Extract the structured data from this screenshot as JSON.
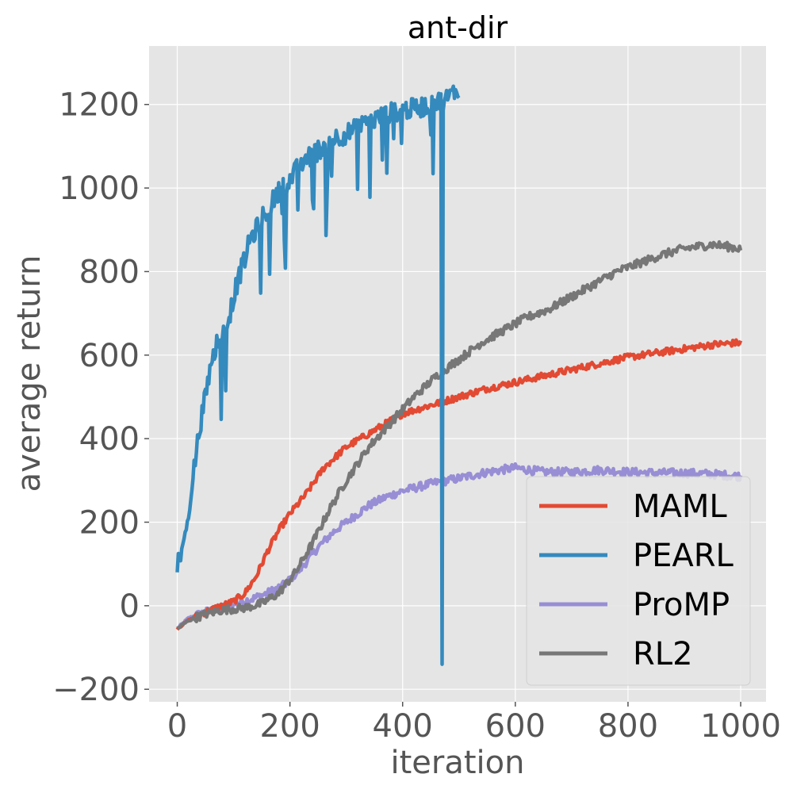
{
  "chart_data": {
    "type": "line",
    "title": "ant-dir",
    "xlabel": "iteration",
    "ylabel": "average return",
    "xlim": [
      -50,
      1045
    ],
    "ylim": [
      -230,
      1340
    ],
    "x_ticks": [
      0,
      200,
      400,
      600,
      800,
      1000
    ],
    "x_tick_labels": [
      "0",
      "200",
      "400",
      "600",
      "800",
      "1000"
    ],
    "y_ticks": [
      -200,
      0,
      200,
      400,
      600,
      800,
      1000,
      1200
    ],
    "y_tick_labels": [
      "−200",
      "0",
      "200",
      "400",
      "600",
      "800",
      "1000",
      "1200"
    ],
    "grid": true,
    "background": "#e5e5e5",
    "legend_position": "lower-right",
    "series": [
      {
        "name": "MAML",
        "color": "#e24a33",
        "noise": 8,
        "points": [
          [
            0,
            -55
          ],
          [
            20,
            -35
          ],
          [
            50,
            -15
          ],
          [
            80,
            0
          ],
          [
            100,
            10
          ],
          [
            120,
            30
          ],
          [
            140,
            70
          ],
          [
            160,
            130
          ],
          [
            180,
            180
          ],
          [
            200,
            220
          ],
          [
            230,
            270
          ],
          [
            260,
            330
          ],
          [
            300,
            380
          ],
          [
            350,
            420
          ],
          [
            400,
            460
          ],
          [
            450,
            480
          ],
          [
            500,
            500
          ],
          [
            550,
            520
          ],
          [
            600,
            535
          ],
          [
            650,
            550
          ],
          [
            700,
            565
          ],
          [
            750,
            580
          ],
          [
            800,
            595
          ],
          [
            850,
            605
          ],
          [
            900,
            615
          ],
          [
            950,
            625
          ],
          [
            1000,
            630
          ]
        ]
      },
      {
        "name": "PEARL",
        "color": "#348abd",
        "noise": 25,
        "points": [
          [
            0,
            140
          ],
          [
            5,
            100
          ],
          [
            10,
            150
          ],
          [
            20,
            210
          ],
          [
            30,
            330
          ],
          [
            40,
            430
          ],
          [
            50,
            500
          ],
          [
            60,
            580
          ],
          [
            70,
            630
          ],
          [
            80,
            650
          ],
          [
            90,
            680
          ],
          [
            100,
            740
          ],
          [
            110,
            790
          ],
          [
            120,
            830
          ],
          [
            130,
            880
          ],
          [
            140,
            900
          ],
          [
            160,
            950
          ],
          [
            180,
            990
          ],
          [
            200,
            1020
          ],
          [
            220,
            1060
          ],
          [
            240,
            1080
          ],
          [
            260,
            1100
          ],
          [
            280,
            1120
          ],
          [
            300,
            1130
          ],
          [
            330,
            1150
          ],
          [
            360,
            1170
          ],
          [
            390,
            1185
          ],
          [
            420,
            1190
          ],
          [
            450,
            1200
          ],
          [
            480,
            1215
          ],
          [
            500,
            1240
          ]
        ],
        "dips": [
          [
            0,
            80
          ],
          [
            75,
            620
          ],
          [
            95,
            520
          ],
          [
            125,
            580
          ],
          [
            175,
            640
          ],
          [
            245,
            890
          ],
          [
            275,
            880
          ],
          [
            335,
            780
          ],
          [
            405,
            830
          ],
          [
            435,
            -160
          ],
          [
            470,
            -140
          ]
        ]
      },
      {
        "name": "ProMP",
        "color": "#988ed5",
        "noise": 10,
        "points": [
          [
            0,
            -55
          ],
          [
            20,
            -30
          ],
          [
            50,
            -15
          ],
          [
            80,
            -5
          ],
          [
            100,
            5
          ],
          [
            130,
            15
          ],
          [
            160,
            30
          ],
          [
            190,
            50
          ],
          [
            220,
            90
          ],
          [
            250,
            140
          ],
          [
            280,
            180
          ],
          [
            310,
            210
          ],
          [
            340,
            240
          ],
          [
            370,
            260
          ],
          [
            400,
            275
          ],
          [
            430,
            285
          ],
          [
            460,
            295
          ],
          [
            500,
            305
          ],
          [
            550,
            320
          ],
          [
            600,
            330
          ],
          [
            650,
            320
          ],
          [
            700,
            320
          ],
          [
            750,
            325
          ],
          [
            800,
            320
          ],
          [
            850,
            318
          ],
          [
            900,
            318
          ],
          [
            950,
            315
          ],
          [
            1000,
            310
          ]
        ]
      },
      {
        "name": "RL2",
        "color": "#777777",
        "noise": 10,
        "points": [
          [
            0,
            -55
          ],
          [
            20,
            -35
          ],
          [
            50,
            -20
          ],
          [
            80,
            -10
          ],
          [
            120,
            -5
          ],
          [
            150,
            5
          ],
          [
            180,
            30
          ],
          [
            210,
            80
          ],
          [
            240,
            150
          ],
          [
            270,
            230
          ],
          [
            300,
            300
          ],
          [
            340,
            380
          ],
          [
            380,
            440
          ],
          [
            420,
            500
          ],
          [
            460,
            550
          ],
          [
            500,
            590
          ],
          [
            540,
            630
          ],
          [
            580,
            660
          ],
          [
            620,
            690
          ],
          [
            660,
            710
          ],
          [
            700,
            740
          ],
          [
            740,
            770
          ],
          [
            780,
            800
          ],
          [
            820,
            820
          ],
          [
            860,
            840
          ],
          [
            900,
            855
          ],
          [
            950,
            865
          ],
          [
            1000,
            855
          ]
        ]
      }
    ]
  }
}
